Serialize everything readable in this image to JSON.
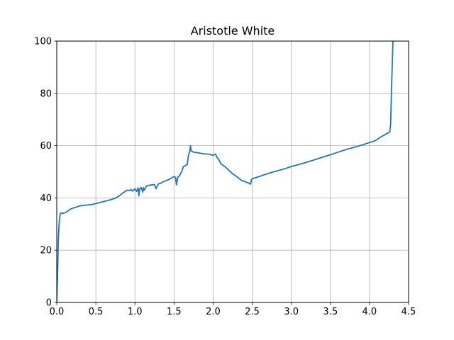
{
  "chart_data": {
    "type": "line",
    "title": "Aristotle White",
    "xlabel": "",
    "ylabel": "",
    "xlim": [
      0.0,
      4.5
    ],
    "ylim": [
      0,
      100
    ],
    "x_ticks": [
      0.0,
      0.5,
      1.0,
      1.5,
      2.0,
      2.5,
      3.0,
      3.5,
      4.0,
      4.5
    ],
    "x_tick_labels": [
      "0.0",
      "0.5",
      "1.0",
      "1.5",
      "2.0",
      "2.5",
      "3.0",
      "3.5",
      "4.0",
      "4.5"
    ],
    "y_ticks": [
      0,
      20,
      40,
      60,
      80,
      100
    ],
    "y_tick_labels": [
      "0",
      "20",
      "40",
      "60",
      "80",
      "100"
    ],
    "grid": true,
    "legend": "none",
    "line_color": "#1f77b4",
    "series": [
      {
        "x": [
          0.0,
          0.01,
          0.02,
          0.03,
          0.04,
          0.05,
          0.08,
          0.12,
          0.15,
          0.18,
          0.2,
          0.25,
          0.3,
          0.35,
          0.4,
          0.45,
          0.5,
          0.55,
          0.6,
          0.65,
          0.7,
          0.75,
          0.8,
          0.85,
          0.88,
          0.9,
          0.93,
          0.95,
          0.97,
          1.0,
          1.02,
          1.04,
          1.05,
          1.06,
          1.08,
          1.1,
          1.11,
          1.12,
          1.15,
          1.18,
          1.2,
          1.22,
          1.25,
          1.27,
          1.3,
          1.33,
          1.35,
          1.38,
          1.4,
          1.43,
          1.45,
          1.48,
          1.5,
          1.52,
          1.53,
          1.55,
          1.57,
          1.6,
          1.62,
          1.64,
          1.65,
          1.67,
          1.68,
          1.69,
          1.7,
          1.71,
          1.72,
          1.75,
          1.8,
          1.85,
          1.9,
          1.95,
          2.0,
          2.03,
          2.05,
          2.07,
          2.1,
          2.15,
          2.2,
          2.25,
          2.3,
          2.35,
          2.38,
          2.4,
          2.43,
          2.45,
          2.47,
          2.48,
          2.49,
          2.5,
          2.6,
          2.7,
          2.8,
          2.9,
          3.0,
          3.1,
          3.2,
          3.3,
          3.4,
          3.5,
          3.6,
          3.7,
          3.8,
          3.9,
          4.0,
          4.05,
          4.1,
          4.15,
          4.2,
          4.23,
          4.25,
          4.26,
          4.27,
          4.28,
          4.29,
          4.3
        ],
        "y": [
          0,
          10,
          24,
          30,
          33,
          34.2,
          34.1,
          34.5,
          35.2,
          35.8,
          36.0,
          36.5,
          37.0,
          37.2,
          37.3,
          37.5,
          37.8,
          38.2,
          38.6,
          39.0,
          39.4,
          39.9,
          40.8,
          42.0,
          42.5,
          43.0,
          42.8,
          43.2,
          42.6,
          43.5,
          42.5,
          43.8,
          40.8,
          43.4,
          44.0,
          42.2,
          44.0,
          43.0,
          44.6,
          44.8,
          44.9,
          45.0,
          45.1,
          43.5,
          45.4,
          45.6,
          46.0,
          46.4,
          46.6,
          47.0,
          47.3,
          47.8,
          48.2,
          47.8,
          45.0,
          48.0,
          48.5,
          50.2,
          52.0,
          52.2,
          52.5,
          52.8,
          55.5,
          57.0,
          57.5,
          60.0,
          58.0,
          57.5,
          57.3,
          57.0,
          56.8,
          56.7,
          56.3,
          56.8,
          55.5,
          54.8,
          53.0,
          52.0,
          50.6,
          49.2,
          48.2,
          47.0,
          46.4,
          46.4,
          45.9,
          45.8,
          45.3,
          45.3,
          47.0,
          47.3,
          48.3,
          49.3,
          50.2,
          51.0,
          52.0,
          52.8,
          53.7,
          54.6,
          55.6,
          56.5,
          57.5,
          58.5,
          59.3,
          60.2,
          61.2,
          61.6,
          62.4,
          63.4,
          64.2,
          64.8,
          65.0,
          65.3,
          68.0,
          80.0,
          90.0,
          100.0
        ]
      }
    ]
  }
}
